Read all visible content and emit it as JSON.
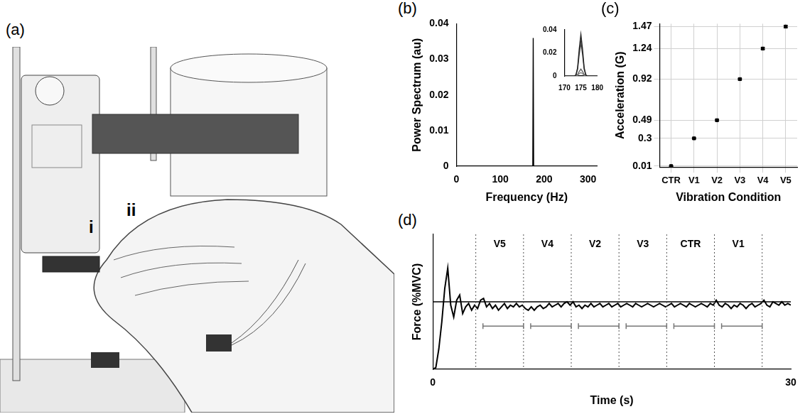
{
  "chart_data": [
    {
      "panel": "(b)",
      "type": "line",
      "x_label": "Frequency (Hz)",
      "y_label": "Power Spectrum (au)",
      "xlim": [
        0,
        320
      ],
      "xticks": [
        0,
        100,
        200,
        300
      ],
      "ylim": [
        0,
        0.04
      ],
      "yticks": [
        0,
        0.01,
        0.02,
        0.03,
        0.04
      ],
      "grid": false,
      "x": [
        0,
        174,
        175,
        176,
        320
      ],
      "series": [
        {
          "color": "#000000",
          "values": [
            0,
            0,
            0.036,
            0,
            0
          ]
        }
      ],
      "inset": {
        "type": "line",
        "xlim": [
          170,
          180
        ],
        "xticks": [
          170,
          175,
          180
        ],
        "ylim": [
          0,
          0.04
        ],
        "yticks": [
          0,
          0.02,
          0.04
        ],
        "grid": false,
        "x": [
          170,
          173,
          173.5,
          174,
          174.5,
          175,
          175.5,
          176,
          176.5,
          177,
          180
        ],
        "series": [
          {
            "color": "#222222",
            "values": [
              0,
              0,
              0.001,
              0.0072,
              0.0234,
              0.036,
              0.0234,
              0.0072,
              0.001,
              0,
              0
            ]
          },
          {
            "color": "#444444",
            "values": [
              0,
              0,
              0.0009,
              0.0058,
              0.0189,
              0.029,
              0.0189,
              0.0058,
              0.0009,
              0,
              0
            ]
          },
          {
            "color": "#666666",
            "values": [
              0,
              0,
              0.0002,
              0.0012,
              0.0039,
              0.006,
              0.0039,
              0.0012,
              0.0002,
              0,
              0
            ]
          },
          {
            "color": "#888888",
            "values": [
              0,
              0,
              0.0001,
              0.0006,
              0.002,
              0.003,
              0.002,
              0.0006,
              0.0001,
              0,
              0
            ]
          }
        ]
      }
    },
    {
      "panel": "(c)",
      "type": "scatter",
      "x_label": "Vibration Condition",
      "y_label": "Acceleration (G)",
      "categories": [
        "CTR",
        "V1",
        "V2",
        "V3",
        "V4",
        "V5"
      ],
      "values": [
        0.01,
        0.3,
        0.49,
        0.92,
        1.24,
        1.47
      ],
      "errors": [
        0.004,
        0.006,
        0.008,
        0.008,
        0.01,
        0.012
      ],
      "ylim": [
        0,
        1.5
      ],
      "yticks": [
        0.01,
        0.3,
        0.49,
        0.92,
        1.24,
        1.47
      ],
      "grid": true,
      "marker": "square",
      "color": "#000000"
    },
    {
      "panel": "(d)",
      "type": "line",
      "x_label": "Time (s)",
      "y_label": "Force (%MVC)",
      "xlim": [
        0,
        30
      ],
      "xticks": [
        0,
        30
      ],
      "ylim": [
        0,
        40
      ],
      "tick_labels": "x",
      "grid": false,
      "color": "#000000",
      "target": 20,
      "boundaries": [
        3.6,
        7.6,
        11.6,
        15.6,
        19.6,
        23.6,
        27.6
      ],
      "conditions": [
        "V5",
        "V4",
        "V2",
        "V3",
        "CTR",
        "V1"
      ],
      "windows": [
        [
          4.2,
          7.6
        ],
        [
          8.2,
          11.6
        ],
        [
          12.2,
          15.6
        ],
        [
          16.2,
          19.6
        ],
        [
          20.2,
          23.6
        ],
        [
          24.2,
          27.6
        ]
      ],
      "x": [
        0,
        0.25,
        0.5,
        0.75,
        1,
        1.25,
        1.5,
        1.75,
        2,
        2.25,
        2.5,
        2.75,
        3,
        3.25,
        3.5,
        3.75,
        4,
        4.25,
        4.5,
        4.75,
        5,
        5.25,
        5.5,
        5.75,
        6,
        6.25,
        6.5,
        6.75,
        7,
        7.25,
        7.5,
        7.75,
        8,
        8.25,
        8.5,
        8.75,
        9,
        9.25,
        9.5,
        9.75,
        10,
        10.25,
        10.5,
        10.75,
        11,
        11.25,
        11.5,
        11.75,
        12,
        12.25,
        12.5,
        12.75,
        13,
        13.25,
        13.5,
        13.75,
        14,
        14.25,
        14.5,
        14.75,
        15,
        15.25,
        15.5,
        15.75,
        16,
        16.25,
        16.5,
        16.75,
        17,
        17.25,
        17.5,
        17.75,
        18,
        18.25,
        18.5,
        18.75,
        19,
        19.25,
        19.5,
        19.75,
        20,
        20.25,
        20.5,
        20.75,
        21,
        21.25,
        21.5,
        21.75,
        22,
        22.25,
        22.5,
        22.75,
        23,
        23.25,
        23.5,
        23.75,
        24,
        24.25,
        24.5,
        24.75,
        25,
        25.25,
        25.5,
        25.75,
        26,
        26.25,
        26.5,
        26.75,
        27,
        27.25,
        27.5,
        27.75,
        28,
        28.25,
        28.5,
        28.75,
        29,
        29.25,
        29.5,
        29.75,
        30
      ],
      "values": [
        0,
        0.5,
        6,
        14,
        24,
        30,
        19,
        15.5,
        20.5,
        22,
        16.5,
        18.5,
        19.5,
        17.5,
        19,
        18,
        20.5,
        21,
        18.5,
        19.5,
        18,
        19,
        17.5,
        18.5,
        19.5,
        18,
        19,
        18.5,
        19.5,
        18.5,
        19,
        18,
        17.5,
        18.5,
        17.5,
        18.5,
        19,
        18,
        18.5,
        19.5,
        18.5,
        19,
        19.5,
        18.5,
        19.5,
        20,
        19,
        20,
        18.5,
        19,
        18,
        19,
        18.5,
        19.5,
        18.5,
        19,
        19.5,
        18.5,
        19,
        19.5,
        18.5,
        19,
        19.5,
        18.5,
        19,
        19.5,
        19,
        18.5,
        19.5,
        19,
        18.5,
        19,
        19.5,
        19,
        18.5,
        19,
        19.5,
        19,
        18.5,
        19,
        19.5,
        18.5,
        19,
        19.5,
        19,
        18.5,
        19.5,
        19,
        18.5,
        19,
        19.5,
        19,
        18.5,
        19.5,
        19,
        20.5,
        19,
        18.5,
        19.5,
        19,
        18,
        19,
        18.5,
        19.5,
        19,
        18,
        19,
        19.5,
        18.5,
        19,
        19.5,
        20.5,
        19,
        18.5,
        20,
        19.5,
        19,
        20,
        19,
        19.5,
        19
      ]
    }
  ],
  "photo": {
    "panel": "(a)",
    "labels": [
      "i",
      "ii"
    ]
  }
}
